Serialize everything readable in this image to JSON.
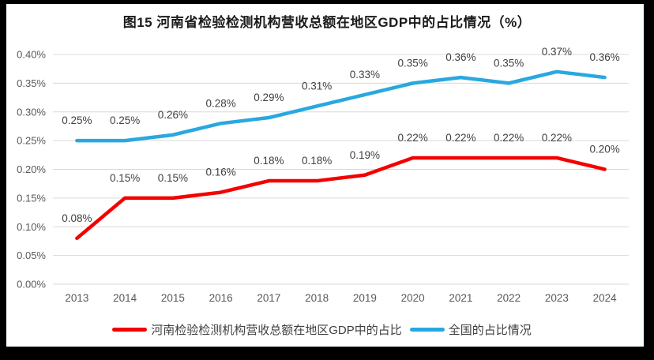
{
  "title": "图15  河南省检验检测机构营收总额在地区GDP中的占比情况（%）",
  "colors": {
    "henan": "#f30000",
    "national": "#29a8e0",
    "grid": "#d9d9d9",
    "tick": "#595959",
    "data_label": "#3f3f3f",
    "title_text": "#1a1a1a",
    "legend_text": "#404040",
    "frame": "#000000",
    "panel": "#ffffff"
  },
  "chart_data": {
    "type": "line",
    "title": "图15  河南省检验检测机构营收总额在地区GDP中的占比情况（%）",
    "categories": [
      "2013",
      "2014",
      "2015",
      "2016",
      "2017",
      "2018",
      "2019",
      "2020",
      "2021",
      "2022",
      "2023",
      "2024"
    ],
    "series": [
      {
        "id": "henan",
        "name": "河南检验检测机构营收总额在地区GDP中的占比",
        "color_key": "henan",
        "values": [
          0.08,
          0.15,
          0.15,
          0.16,
          0.18,
          0.18,
          0.19,
          0.22,
          0.22,
          0.22,
          0.22,
          0.2
        ],
        "labels": [
          "0.08%",
          "0.15%",
          "0.15%",
          "0.16%",
          "0.18%",
          "0.18%",
          "0.19%",
          "0.22%",
          "0.22%",
          "0.22%",
          "0.22%",
          "0.20%"
        ]
      },
      {
        "id": "national",
        "name": "全国的占比情况",
        "color_key": "national",
        "values": [
          0.25,
          0.25,
          0.26,
          0.28,
          0.29,
          0.31,
          0.33,
          0.35,
          0.36,
          0.35,
          0.37,
          0.36
        ],
        "labels": [
          "0.25%",
          "0.25%",
          "0.26%",
          "0.28%",
          "0.29%",
          "0.31%",
          "0.33%",
          "0.35%",
          "0.36%",
          "0.35%",
          "0.37%",
          "0.36%"
        ]
      }
    ],
    "ylim": [
      0,
      0.4
    ],
    "yticks": [
      {
        "value": 0.0,
        "label": "0.00%"
      },
      {
        "value": 0.05,
        "label": "0.05%"
      },
      {
        "value": 0.1,
        "label": "0.10%"
      },
      {
        "value": 0.15,
        "label": "0.15%"
      },
      {
        "value": 0.2,
        "label": "0.20%"
      },
      {
        "value": 0.25,
        "label": "0.25%"
      },
      {
        "value": 0.3,
        "label": "0.30%"
      },
      {
        "value": 0.35,
        "label": "0.35%"
      },
      {
        "value": 0.4,
        "label": "0.40%"
      }
    ],
    "grid": true,
    "legend_position": "bottom"
  },
  "legend": {
    "items": [
      {
        "id": "henan",
        "label": "河南检验检测机构营收总额在地区GDP中的占比",
        "color_key": "henan"
      },
      {
        "id": "national",
        "label": "全国的占比情况",
        "color_key": "national"
      }
    ]
  }
}
